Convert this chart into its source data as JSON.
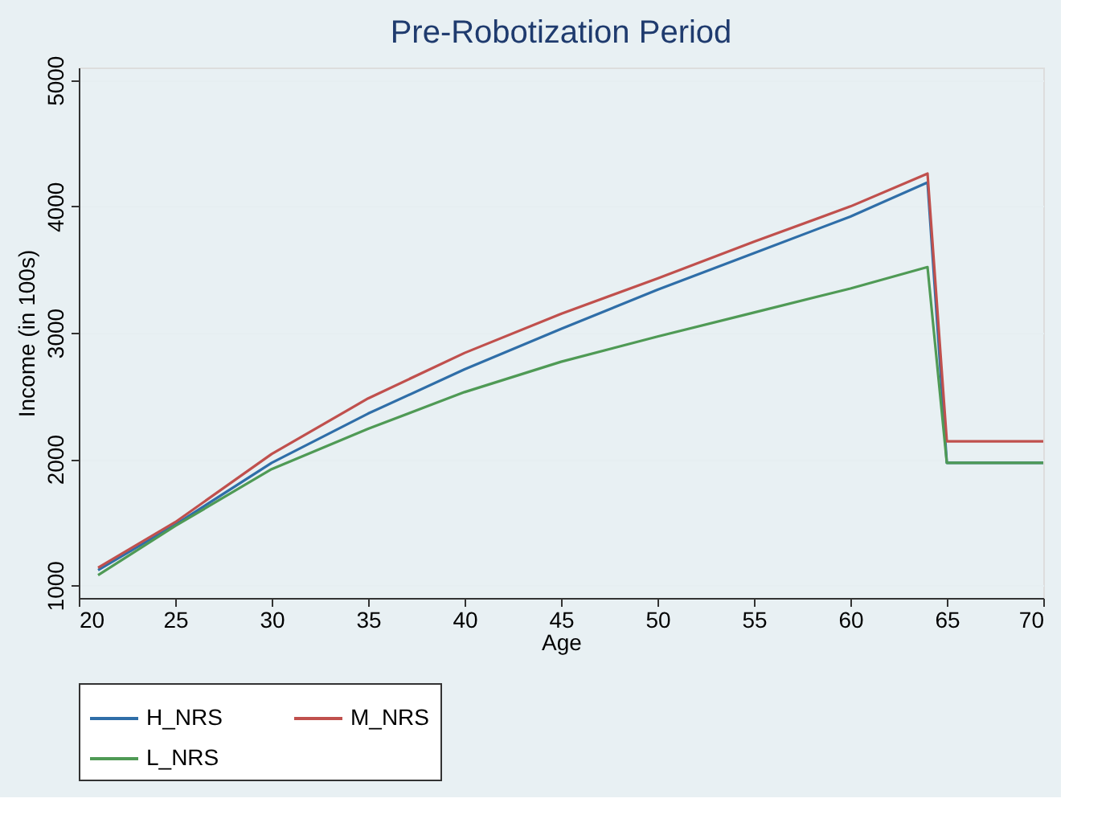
{
  "chart_data": {
    "type": "line",
    "title": "Pre-Robotization Period",
    "xlabel": "Age",
    "ylabel": "Income (in 100s)",
    "x": [
      21,
      25,
      30,
      35,
      40,
      45,
      50,
      55,
      60,
      64,
      65,
      70
    ],
    "series": [
      {
        "name": "H_NRS",
        "color": "#2f6ea8",
        "values": [
          1120,
          1480,
          1970,
          2360,
          2710,
          3030,
          3340,
          3630,
          3920,
          4190,
          1970,
          1970
        ]
      },
      {
        "name": "M_NRS",
        "color": "#c0504d",
        "values": [
          1140,
          1500,
          2040,
          2480,
          2840,
          3150,
          3430,
          3720,
          4000,
          4260,
          2140,
          2140
        ]
      },
      {
        "name": "L_NRS",
        "color": "#4f9a55",
        "values": [
          1080,
          1470,
          1920,
          2240,
          2530,
          2770,
          2970,
          3160,
          3350,
          3520,
          1970,
          1970
        ]
      }
    ],
    "xlim": [
      20,
      70
    ],
    "xticks": [
      20,
      25,
      30,
      35,
      40,
      45,
      50,
      55,
      60,
      65,
      70
    ],
    "ylim": [
      900,
      5100
    ],
    "yticks": [
      1000,
      2000,
      3000,
      4000,
      5000
    ],
    "grid": "y",
    "legend": "bottom",
    "marker": "none",
    "line_style": "solid"
  }
}
